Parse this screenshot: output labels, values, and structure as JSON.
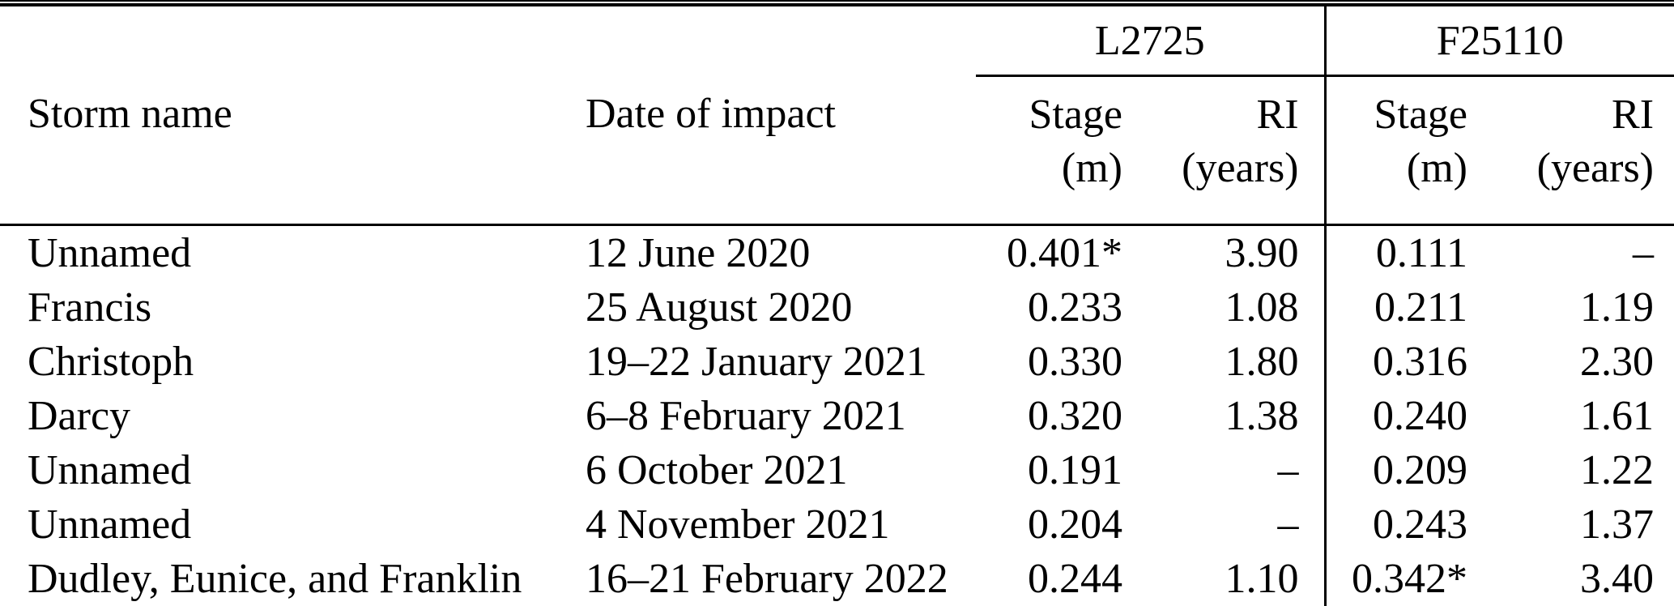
{
  "table": {
    "groups": {
      "left_gauge": "L2725",
      "right_gauge": "F25110"
    },
    "headers": {
      "storm_name": "Storm name",
      "date_of_impact": "Date of impact",
      "stage_label": "Stage",
      "stage_unit": "(m)",
      "ri_label": "RI",
      "ri_unit": "(years)"
    },
    "rows": [
      {
        "storm": "Unnamed",
        "date": "12 June 2020",
        "l_stage": "0.401*",
        "l_ri": "3.90",
        "f_stage": "0.111",
        "f_ri": "–"
      },
      {
        "storm": "Francis",
        "date": "25 August 2020",
        "l_stage": "0.233",
        "l_ri": "1.08",
        "f_stage": "0.211",
        "f_ri": "1.19"
      },
      {
        "storm": "Christoph",
        "date": "19–22 January 2021",
        "l_stage": "0.330",
        "l_ri": "1.80",
        "f_stage": "0.316",
        "f_ri": "2.30"
      },
      {
        "storm": "Darcy",
        "date": "6–8 February 2021",
        "l_stage": "0.320",
        "l_ri": "1.38",
        "f_stage": "0.240",
        "f_ri": "1.61"
      },
      {
        "storm": "Unnamed",
        "date": "6 October 2021",
        "l_stage": "0.191",
        "l_ri": "–",
        "f_stage": "0.209",
        "f_ri": "1.22"
      },
      {
        "storm": "Unnamed",
        "date": "4 November 2021",
        "l_stage": "0.204",
        "l_ri": "–",
        "f_stage": "0.243",
        "f_ri": "1.37"
      },
      {
        "storm": "Dudley, Eunice, and Franklin",
        "date": "16–21 February 2022",
        "l_stage": "0.244",
        "l_ri": "1.10",
        "f_stage": "0.342*",
        "f_ri": "3.40"
      }
    ],
    "colors": {
      "text": "#000000",
      "background": "#ffffff",
      "rule": "#000000"
    }
  }
}
